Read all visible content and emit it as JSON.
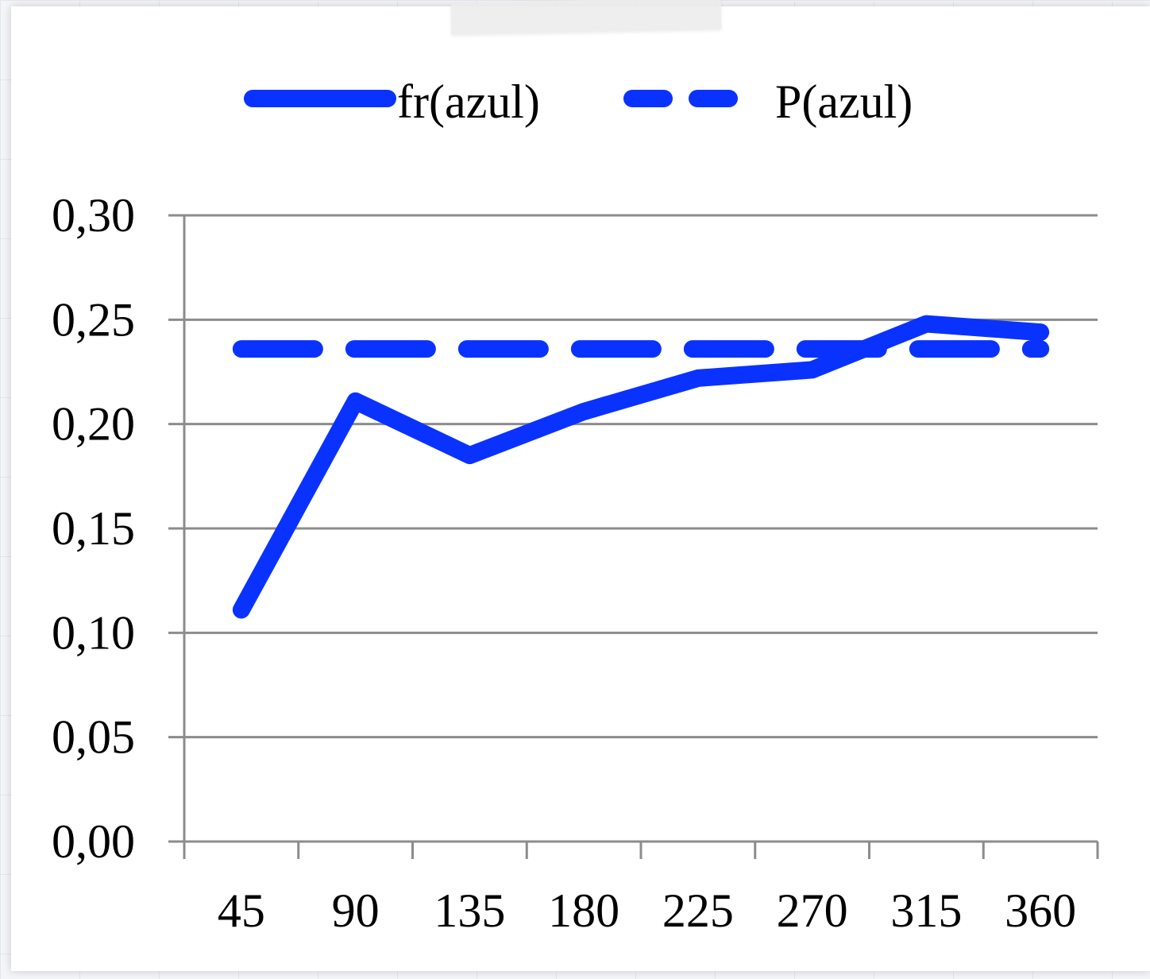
{
  "chart_data": {
    "type": "line",
    "title": "",
    "xlabel": "",
    "ylabel": "",
    "categories": [
      "45",
      "90",
      "135",
      "180",
      "225",
      "270",
      "315",
      "360"
    ],
    "ylim": [
      0,
      0.3
    ],
    "yticks": [
      "0,00",
      "0,05",
      "0,10",
      "0,15",
      "0,20",
      "0,25",
      "0,30"
    ],
    "grid": true,
    "legend_position": "top",
    "series": [
      {
        "name": "fr(azul)",
        "style": "solid",
        "color": "#0a32ff",
        "values": [
          0.111,
          0.211,
          0.185,
          0.206,
          0.222,
          0.226,
          0.248,
          0.244
        ]
      },
      {
        "name": "P(azul)",
        "style": "dashed",
        "color": "#0a32ff",
        "values": [
          0.236,
          0.236,
          0.236,
          0.236,
          0.236,
          0.236,
          0.236,
          0.236
        ]
      }
    ]
  }
}
